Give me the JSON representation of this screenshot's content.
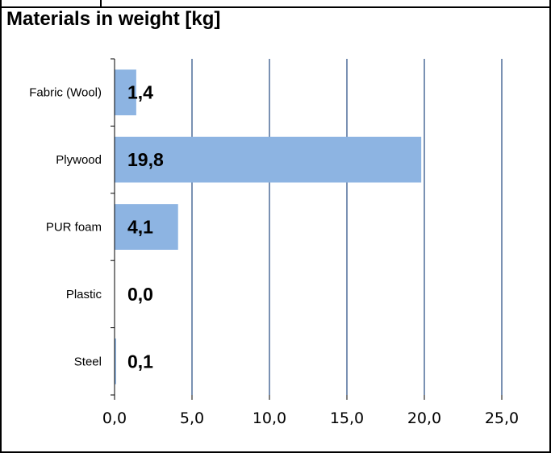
{
  "chart_data": {
    "type": "bar",
    "orientation": "horizontal",
    "title": "Materials in weight [kg]",
    "xlabel": "",
    "ylabel": "",
    "categories": [
      "Fabric (Wool)",
      "Plywood",
      "PUR foam",
      "Plastic",
      "Steel"
    ],
    "values": [
      1.4,
      19.8,
      4.1,
      0.0,
      0.1
    ],
    "value_labels": [
      "1,4",
      "19,8",
      "4,1",
      "0,0",
      "0,1"
    ],
    "xlim": [
      0,
      25
    ],
    "xticks": [
      0,
      5,
      10,
      15,
      20,
      25
    ],
    "xtick_labels": [
      "0,0",
      "5,0",
      "10,0",
      "15,0",
      "20,0",
      "25,0"
    ],
    "grid": "vertical",
    "bar_color": "#8DB4E2",
    "grid_color": "#4F6D9A"
  }
}
